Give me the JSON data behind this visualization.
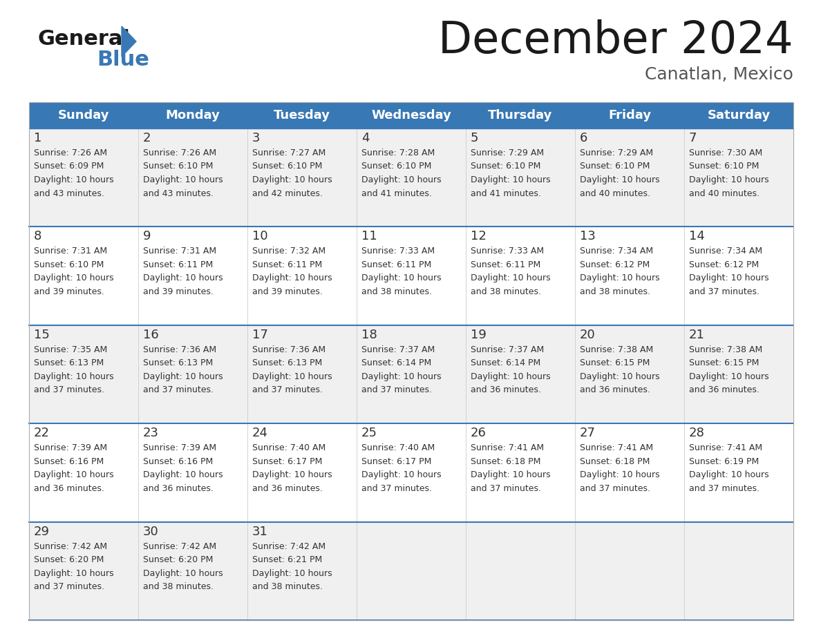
{
  "title": "December 2024",
  "subtitle": "Canatlan, Mexico",
  "header_color": "#3878b4",
  "header_text_color": "#ffffff",
  "day_names": [
    "Sunday",
    "Monday",
    "Tuesday",
    "Wednesday",
    "Thursday",
    "Friday",
    "Saturday"
  ],
  "bg_color": "#ffffff",
  "cell_bg_even": "#f0f0f0",
  "cell_bg_odd": "#ffffff",
  "row_line_color": "#3878b4",
  "text_color": "#333333",
  "days": [
    {
      "day": 1,
      "col": 0,
      "row": 0,
      "sunrise": "7:26 AM",
      "sunset": "6:09 PM",
      "daylight": "10 hours and 43 minutes."
    },
    {
      "day": 2,
      "col": 1,
      "row": 0,
      "sunrise": "7:26 AM",
      "sunset": "6:10 PM",
      "daylight": "10 hours and 43 minutes."
    },
    {
      "day": 3,
      "col": 2,
      "row": 0,
      "sunrise": "7:27 AM",
      "sunset": "6:10 PM",
      "daylight": "10 hours and 42 minutes."
    },
    {
      "day": 4,
      "col": 3,
      "row": 0,
      "sunrise": "7:28 AM",
      "sunset": "6:10 PM",
      "daylight": "10 hours and 41 minutes."
    },
    {
      "day": 5,
      "col": 4,
      "row": 0,
      "sunrise": "7:29 AM",
      "sunset": "6:10 PM",
      "daylight": "10 hours and 41 minutes."
    },
    {
      "day": 6,
      "col": 5,
      "row": 0,
      "sunrise": "7:29 AM",
      "sunset": "6:10 PM",
      "daylight": "10 hours and 40 minutes."
    },
    {
      "day": 7,
      "col": 6,
      "row": 0,
      "sunrise": "7:30 AM",
      "sunset": "6:10 PM",
      "daylight": "10 hours and 40 minutes."
    },
    {
      "day": 8,
      "col": 0,
      "row": 1,
      "sunrise": "7:31 AM",
      "sunset": "6:10 PM",
      "daylight": "10 hours and 39 minutes."
    },
    {
      "day": 9,
      "col": 1,
      "row": 1,
      "sunrise": "7:31 AM",
      "sunset": "6:11 PM",
      "daylight": "10 hours and 39 minutes."
    },
    {
      "day": 10,
      "col": 2,
      "row": 1,
      "sunrise": "7:32 AM",
      "sunset": "6:11 PM",
      "daylight": "10 hours and 39 minutes."
    },
    {
      "day": 11,
      "col": 3,
      "row": 1,
      "sunrise": "7:33 AM",
      "sunset": "6:11 PM",
      "daylight": "10 hours and 38 minutes."
    },
    {
      "day": 12,
      "col": 4,
      "row": 1,
      "sunrise": "7:33 AM",
      "sunset": "6:11 PM",
      "daylight": "10 hours and 38 minutes."
    },
    {
      "day": 13,
      "col": 5,
      "row": 1,
      "sunrise": "7:34 AM",
      "sunset": "6:12 PM",
      "daylight": "10 hours and 38 minutes."
    },
    {
      "day": 14,
      "col": 6,
      "row": 1,
      "sunrise": "7:34 AM",
      "sunset": "6:12 PM",
      "daylight": "10 hours and 37 minutes."
    },
    {
      "day": 15,
      "col": 0,
      "row": 2,
      "sunrise": "7:35 AM",
      "sunset": "6:13 PM",
      "daylight": "10 hours and 37 minutes."
    },
    {
      "day": 16,
      "col": 1,
      "row": 2,
      "sunrise": "7:36 AM",
      "sunset": "6:13 PM",
      "daylight": "10 hours and 37 minutes."
    },
    {
      "day": 17,
      "col": 2,
      "row": 2,
      "sunrise": "7:36 AM",
      "sunset": "6:13 PM",
      "daylight": "10 hours and 37 minutes."
    },
    {
      "day": 18,
      "col": 3,
      "row": 2,
      "sunrise": "7:37 AM",
      "sunset": "6:14 PM",
      "daylight": "10 hours and 37 minutes."
    },
    {
      "day": 19,
      "col": 4,
      "row": 2,
      "sunrise": "7:37 AM",
      "sunset": "6:14 PM",
      "daylight": "10 hours and 36 minutes."
    },
    {
      "day": 20,
      "col": 5,
      "row": 2,
      "sunrise": "7:38 AM",
      "sunset": "6:15 PM",
      "daylight": "10 hours and 36 minutes."
    },
    {
      "day": 21,
      "col": 6,
      "row": 2,
      "sunrise": "7:38 AM",
      "sunset": "6:15 PM",
      "daylight": "10 hours and 36 minutes."
    },
    {
      "day": 22,
      "col": 0,
      "row": 3,
      "sunrise": "7:39 AM",
      "sunset": "6:16 PM",
      "daylight": "10 hours and 36 minutes."
    },
    {
      "day": 23,
      "col": 1,
      "row": 3,
      "sunrise": "7:39 AM",
      "sunset": "6:16 PM",
      "daylight": "10 hours and 36 minutes."
    },
    {
      "day": 24,
      "col": 2,
      "row": 3,
      "sunrise": "7:40 AM",
      "sunset": "6:17 PM",
      "daylight": "10 hours and 36 minutes."
    },
    {
      "day": 25,
      "col": 3,
      "row": 3,
      "sunrise": "7:40 AM",
      "sunset": "6:17 PM",
      "daylight": "10 hours and 37 minutes."
    },
    {
      "day": 26,
      "col": 4,
      "row": 3,
      "sunrise": "7:41 AM",
      "sunset": "6:18 PM",
      "daylight": "10 hours and 37 minutes."
    },
    {
      "day": 27,
      "col": 5,
      "row": 3,
      "sunrise": "7:41 AM",
      "sunset": "6:18 PM",
      "daylight": "10 hours and 37 minutes."
    },
    {
      "day": 28,
      "col": 6,
      "row": 3,
      "sunrise": "7:41 AM",
      "sunset": "6:19 PM",
      "daylight": "10 hours and 37 minutes."
    },
    {
      "day": 29,
      "col": 0,
      "row": 4,
      "sunrise": "7:42 AM",
      "sunset": "6:20 PM",
      "daylight": "10 hours and 37 minutes."
    },
    {
      "day": 30,
      "col": 1,
      "row": 4,
      "sunrise": "7:42 AM",
      "sunset": "6:20 PM",
      "daylight": "10 hours and 38 minutes."
    },
    {
      "day": 31,
      "col": 2,
      "row": 4,
      "sunrise": "7:42 AM",
      "sunset": "6:21 PM",
      "daylight": "10 hours and 38 minutes."
    }
  ]
}
